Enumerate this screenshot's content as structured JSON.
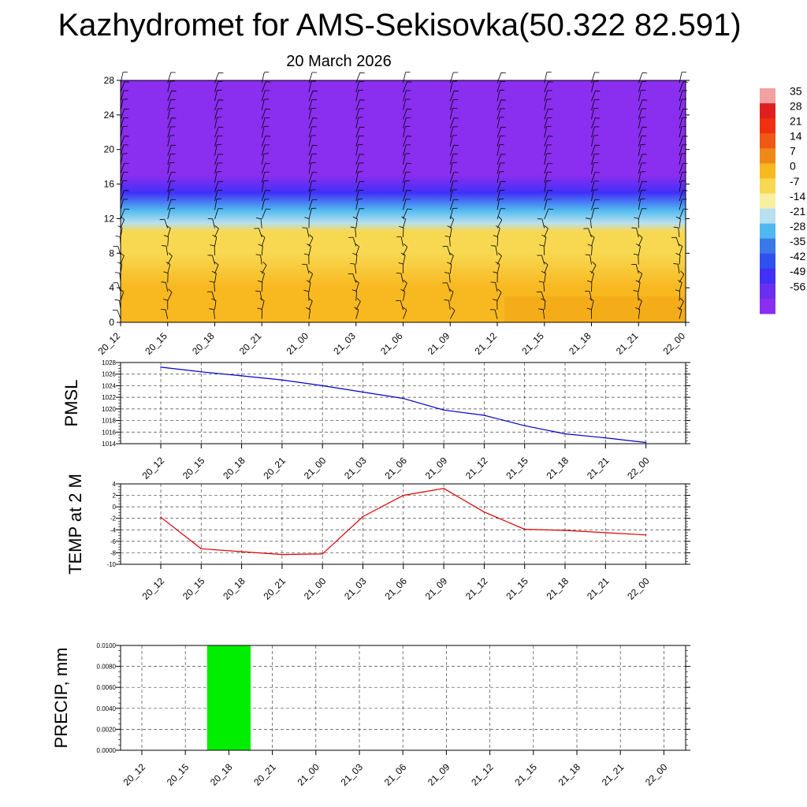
{
  "title": "Kazhydromet for AMS-Sekisovka(50.322 82.591)",
  "subtitle": "20 March 2026",
  "colorbar": {
    "labels": [
      "35",
      "28",
      "21",
      "14",
      "7",
      "0",
      "-7",
      "-14",
      "-21",
      "-28",
      "-35",
      "-42",
      "-49",
      "-56"
    ],
    "colors": [
      "#f2a0a0",
      "#e02020",
      "#f03010",
      "#f05818",
      "#f08818",
      "#f8b820",
      "#f8d850",
      "#f8f0a0",
      "#b8e0f0",
      "#50b8f0",
      "#3878e8",
      "#3050f0",
      "#4030f8",
      "#6a2ef0",
      "#8a2ef0"
    ]
  },
  "chart_data": [
    {
      "type": "heatmap",
      "title": "",
      "xlabel": "",
      "ylabel": "",
      "categories": [
        "20_12",
        "20_15",
        "20_18",
        "20_21",
        "21_00",
        "21_03",
        "21_06",
        "21_09",
        "21_12",
        "21_15",
        "21_18",
        "21_21",
        "22_00"
      ],
      "y_ticks": [
        "0",
        "4",
        "8",
        "12",
        "16",
        "20",
        "24",
        "28"
      ],
      "ylim": [
        0,
        28
      ],
      "color_scale_labels": [
        "35",
        "28",
        "21",
        "14",
        "7",
        "0",
        "-7",
        "-14",
        "-21",
        "-28",
        "-35",
        "-42",
        "-49",
        "-56"
      ],
      "temperature_profile": [
        {
          "level": 0,
          "value": 3
        },
        {
          "level": 4,
          "value": 2
        },
        {
          "level": 8,
          "value": 0
        },
        {
          "level": 10.5,
          "value": -3
        },
        {
          "level": 11.5,
          "value": -15
        },
        {
          "level": 13,
          "value": -25
        },
        {
          "level": 15,
          "value": -45
        },
        {
          "level": 17,
          "value": -56
        },
        {
          "level": 20,
          "value": -60
        },
        {
          "level": 28,
          "value": -60
        }
      ],
      "overlay": "wind barbs"
    },
    {
      "type": "line",
      "ylabel": "PMSL",
      "categories": [
        "20_12",
        "20_15",
        "20_18",
        "20_21",
        "21_00",
        "21_03",
        "21_06",
        "21_09",
        "21_12",
        "21_15",
        "21_18",
        "21_21",
        "22_00"
      ],
      "values": [
        1027.2,
        1026.4,
        1025.7,
        1025.0,
        1024.0,
        1022.9,
        1021.8,
        1019.8,
        1018.9,
        1017.1,
        1015.7,
        1015.0,
        1014.2
      ],
      "ylim": [
        1014,
        1028
      ],
      "y_ticks": [
        "1028",
        "1026",
        "1024",
        "1022",
        "1020",
        "1018",
        "1016",
        "1014"
      ],
      "grid": true,
      "color": "#0000cc"
    },
    {
      "type": "line",
      "ylabel": "TEMP at 2 M",
      "categories": [
        "20_12",
        "20_15",
        "20_18",
        "20_21",
        "21_00",
        "21_03",
        "21_06",
        "21_09",
        "21_12",
        "21_15",
        "21_18",
        "21_21",
        "22_00"
      ],
      "values": [
        -1.8,
        -7.3,
        -7.8,
        -8.3,
        -8.2,
        -1.7,
        2.0,
        3.2,
        -0.9,
        -3.9,
        -4.1,
        -4.5,
        -4.9
      ],
      "ylim": [
        -10,
        4
      ],
      "y_ticks": [
        "4",
        "2",
        "0",
        "-2",
        "-4",
        "-6",
        "-8",
        "-10"
      ],
      "grid": true,
      "color": "#dd0000"
    },
    {
      "type": "bar",
      "ylabel": "PRECIP, mm",
      "categories": [
        "20_12",
        "20_15",
        "20_18",
        "20_21",
        "21_00",
        "21_03",
        "21_06",
        "21_09",
        "21_12",
        "21_15",
        "21_18",
        "21_21",
        "22_00"
      ],
      "values": [
        0,
        0,
        0.01,
        0,
        0,
        0,
        0,
        0,
        0,
        0,
        0,
        0,
        0
      ],
      "ylim": [
        0,
        0.01
      ],
      "y_ticks": [
        "0.0100",
        "0.0080",
        "0.0060",
        "0.0040",
        "0.0020",
        "0.0000"
      ],
      "grid": true,
      "color": "#00ee00"
    }
  ]
}
